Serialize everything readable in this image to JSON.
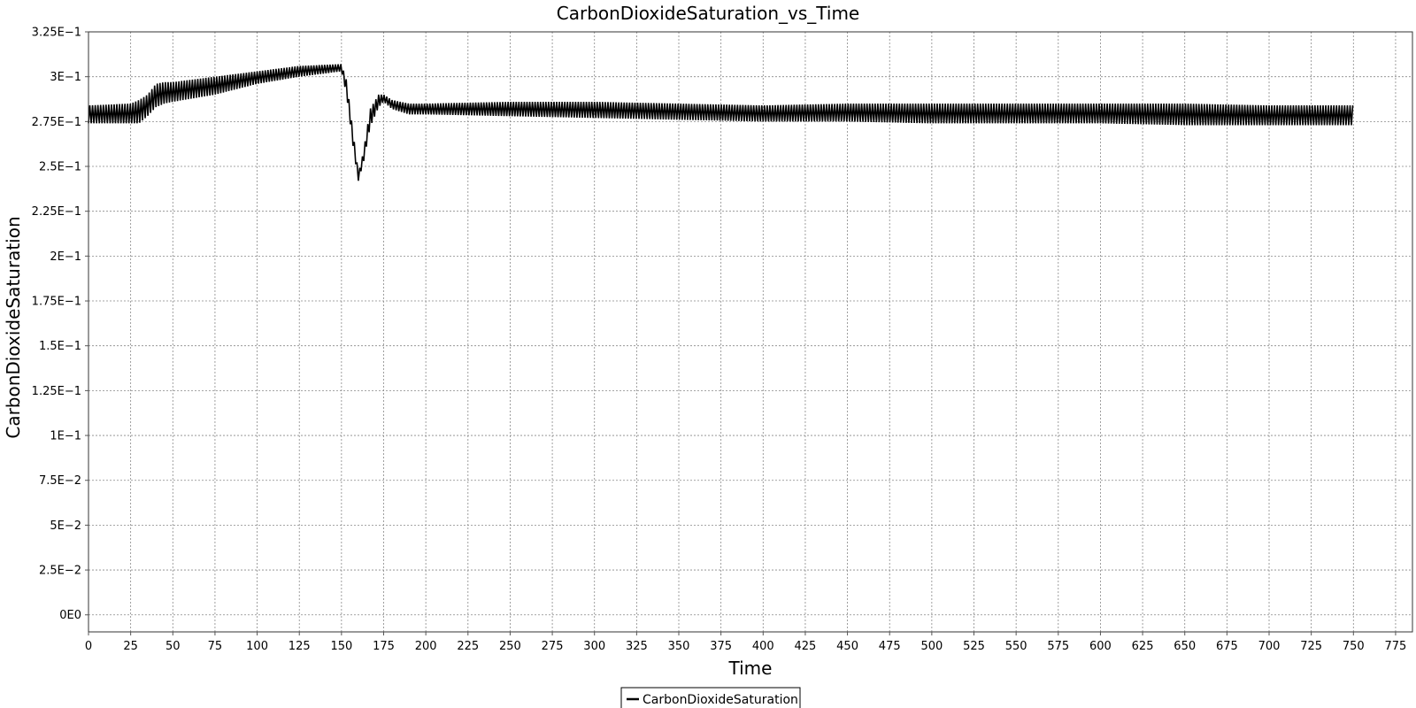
{
  "chart_data": {
    "type": "line",
    "title": "CarbonDioxideSaturation_vs_Time",
    "xlabel": "Time",
    "ylabel": "CarbonDioxideSaturation",
    "xlim": [
      0,
      785
    ],
    "ylim": [
      -0.0095,
      0.325
    ],
    "x_ticks": [
      0,
      25,
      50,
      75,
      100,
      125,
      150,
      175,
      200,
      225,
      250,
      275,
      300,
      325,
      350,
      375,
      400,
      425,
      450,
      475,
      500,
      525,
      550,
      575,
      600,
      625,
      650,
      675,
      700,
      725,
      750,
      775
    ],
    "x_tick_labels": [
      "0",
      "25",
      "50",
      "75",
      "100",
      "125",
      "150",
      "175",
      "200",
      "225",
      "250",
      "275",
      "300",
      "325",
      "350",
      "375",
      "400",
      "425",
      "450",
      "475",
      "500",
      "525",
      "550",
      "575",
      "600",
      "625",
      "650",
      "675",
      "700",
      "725",
      "750",
      "775"
    ],
    "y_ticks": [
      0,
      0.025,
      0.05,
      0.075,
      0.1,
      0.125,
      0.15,
      0.175,
      0.2,
      0.225,
      0.25,
      0.275,
      0.3,
      0.325
    ],
    "y_tick_labels": [
      "0E0",
      "2.5E−2",
      "5E−2",
      "7.5E−2",
      "1E−1",
      "1.25E−1",
      "1.5E−1",
      "1.75E−1",
      "2E−1",
      "2.25E−1",
      "2.5E−1",
      "2.75E−1",
      "3E−1",
      "3.25E−1"
    ],
    "grid": true,
    "legend_position": "bottom-center",
    "series": [
      {
        "name": "CarbonDioxideSaturation",
        "color": "#000000",
        "x": [
          0,
          25,
          30,
          35,
          40,
          45,
          50,
          75,
          100,
          125,
          150,
          153,
          157,
          160,
          163,
          167,
          172,
          175,
          180,
          190,
          200,
          250,
          300,
          350,
          400,
          450,
          500,
          550,
          600,
          650,
          700,
          750
        ],
        "lower": [
          0.274,
          0.274,
          0.274,
          0.278,
          0.283,
          0.285,
          0.286,
          0.29,
          0.296,
          0.3,
          0.303,
          0.29,
          0.26,
          0.242,
          0.252,
          0.272,
          0.283,
          0.286,
          0.282,
          0.279,
          0.279,
          0.278,
          0.277,
          0.276,
          0.275,
          0.275,
          0.274,
          0.274,
          0.274,
          0.273,
          0.273,
          0.273
        ],
        "upper": [
          0.284,
          0.285,
          0.287,
          0.29,
          0.296,
          0.297,
          0.297,
          0.3,
          0.303,
          0.306,
          0.307,
          0.298,
          0.268,
          0.246,
          0.258,
          0.282,
          0.29,
          0.29,
          0.287,
          0.285,
          0.285,
          0.286,
          0.286,
          0.285,
          0.284,
          0.285,
          0.285,
          0.285,
          0.285,
          0.285,
          0.284,
          0.284
        ]
      }
    ]
  }
}
